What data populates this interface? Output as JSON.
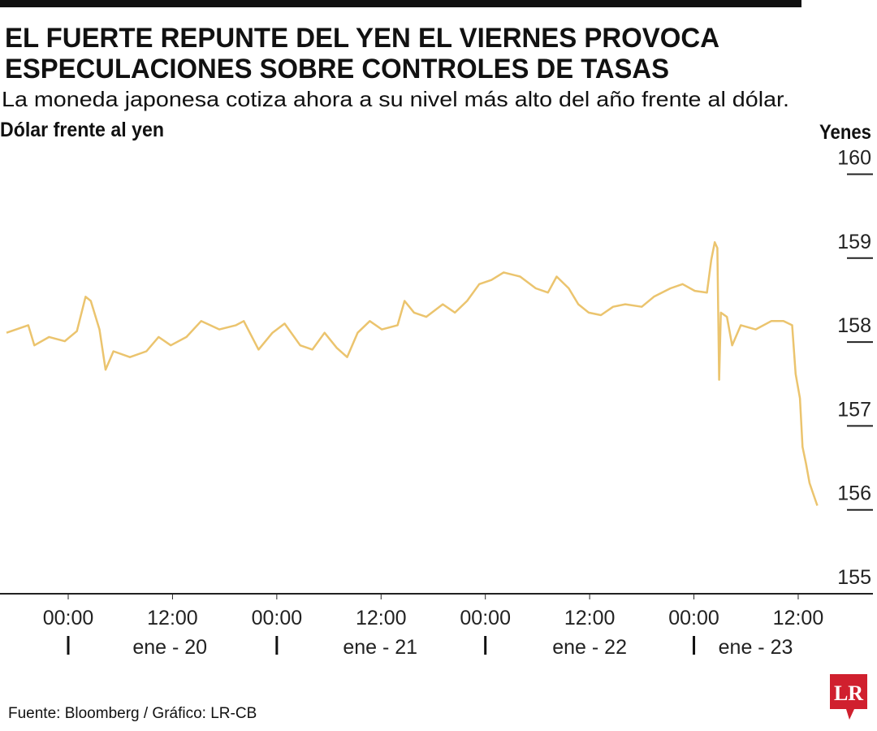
{
  "chart_data": {
    "type": "line",
    "title_lines": [
      "EL FUERTE REPUNTE DEL YEN EL VIERNES PROVOCA",
      "ESPECULACIONES SOBRE CONTROLES DE TASAS"
    ],
    "subtitle": "La moneda japonesa cotiza ahora a su nivel más alto del año frente al dólar.",
    "series_label": "Dólar frente al yen",
    "y_axis_label": "Yenes",
    "source": "Fuente: Bloomberg / Gráfico: LR-CB",
    "logo": "LR",
    "color": "#ebc46e",
    "x": [
      -7.1,
      -4.6,
      -3.9,
      -2.2,
      -0.4,
      1.0,
      2.0,
      2.6,
      3.6,
      4.3,
      5.2,
      7.1,
      9.0,
      10.4,
      11.8,
      13.6,
      15.3,
      17.4,
      19.3,
      20.2,
      21.9,
      23.5,
      24.9,
      26.7,
      28.1,
      29.5,
      30.9,
      32.1,
      33.3,
      34.7,
      36.1,
      37.9,
      38.7,
      39.8,
      41.2,
      43.1,
      44.5,
      45.9,
      47.3,
      48.7,
      50.1,
      52.0,
      53.8,
      55.2,
      56.2,
      57.6,
      58.7,
      59.9,
      61.3,
      62.7,
      64.1,
      66.0,
      67.4,
      69.3,
      70.7,
      72.1,
      73.5,
      74.0,
      74.4,
      74.7,
      74.9,
      75.1,
      75.8,
      76.4,
      77.4,
      79.1,
      80.9,
      82.3,
      83.3,
      83.7,
      84.2,
      84.5,
      84.9,
      85.3,
      85.8,
      86.2
    ],
    "values": [
      158.11,
      158.2,
      157.96,
      158.06,
      158.01,
      158.13,
      158.54,
      158.49,
      158.15,
      157.67,
      157.89,
      157.82,
      157.89,
      158.06,
      157.96,
      158.06,
      158.25,
      158.15,
      158.2,
      158.25,
      157.91,
      158.11,
      158.22,
      157.96,
      157.91,
      158.11,
      157.93,
      157.82,
      158.11,
      158.25,
      158.15,
      158.2,
      158.49,
      158.35,
      158.3,
      158.45,
      158.35,
      158.49,
      158.69,
      158.74,
      158.83,
      158.78,
      158.64,
      158.59,
      158.78,
      158.64,
      158.45,
      158.35,
      158.32,
      158.42,
      158.45,
      158.42,
      158.54,
      158.64,
      158.69,
      158.61,
      158.59,
      158.98,
      159.19,
      159.12,
      157.55,
      158.35,
      158.3,
      157.96,
      158.2,
      158.15,
      158.25,
      158.25,
      158.2,
      157.62,
      157.33,
      156.75,
      156.55,
      156.32,
      156.17,
      156.05
    ],
    "xlim": [
      -7.85,
      92.6
    ],
    "xticks": [
      {
        "value": 0,
        "label": "00:00"
      },
      {
        "value": 12,
        "label": "12:00"
      },
      {
        "value": 24,
        "label": "00:00"
      },
      {
        "value": 36,
        "label": "12:00"
      },
      {
        "value": 48,
        "label": "00:00"
      },
      {
        "value": 60,
        "label": "12:00"
      },
      {
        "value": 72,
        "label": "00:00"
      },
      {
        "value": 84,
        "label": "12:00"
      }
    ],
    "date_labels": [
      {
        "value": 11.7,
        "label": "ene - 20"
      },
      {
        "value": 35.9,
        "label": "ene - 21"
      },
      {
        "value": 60,
        "label": "ene - 22"
      },
      {
        "value": 79.1,
        "label": "ene - 23"
      }
    ],
    "day_starts": [
      0,
      24,
      48,
      72
    ],
    "ylim": [
      155,
      160
    ],
    "yticks": [
      155,
      156,
      157,
      158,
      159,
      160
    ]
  }
}
